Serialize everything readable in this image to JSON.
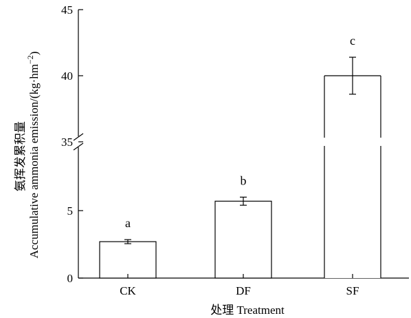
{
  "chart_data": {
    "type": "bar",
    "categories": [
      "CK",
      "DF",
      "SF"
    ],
    "values": [
      2.7,
      5.7,
      40.0
    ],
    "errors": [
      0.15,
      0.3,
      1.4
    ],
    "significance_letters": [
      "a",
      "b",
      "c"
    ],
    "xlabel": "处理 Treatment",
    "ylabel_cn": "氨挥发累积量",
    "ylabel_en": "Accumulative ammonia emission/(kg·hm",
    "ylabel_exp": "−2",
    "ylabel_end": ")",
    "y_axis_break": true,
    "ylim_lower": [
      0,
      10
    ],
    "ylim_upper": [
      35,
      45
    ],
    "y_ticks_lower": [
      "0",
      "5"
    ],
    "y_ticks_upper": [
      "35",
      "40",
      "45"
    ],
    "grid": false,
    "legend": false
  }
}
